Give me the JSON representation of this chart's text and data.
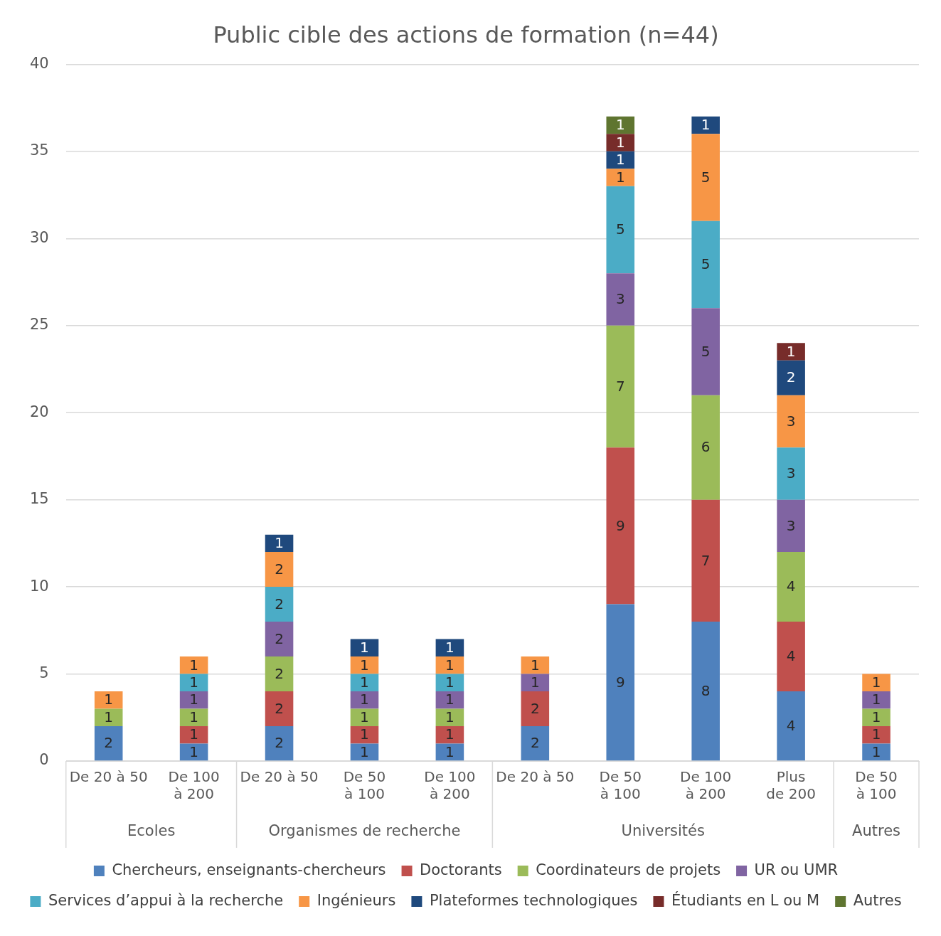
{
  "chart_data": {
    "type": "bar",
    "title": "Public cible des actions de formation (n=44)",
    "stacked": true,
    "data_labels": true,
    "grid": "y",
    "legend": "bottom",
    "categories": [
      "De 20 à 50",
      "De 100 à 200",
      "De 20 à 50",
      "De 50 à 100",
      "De 100 à 200",
      "De 20 à 50",
      "De 50 à 100",
      "De 100 à 200",
      "Plus de 200",
      "De 50 à 100"
    ],
    "annotations": [
      "Ecoles",
      "Organismes de recherche",
      "Universités",
      "Autres"
    ],
    "ylim": [
      0,
      40
    ],
    "yticks": [
      0,
      5,
      10,
      15,
      20,
      25,
      30,
      35,
      40
    ],
    "series": [
      {
        "name": "Chercheurs, enseignants-chercheurs",
        "color": "#4f81bd",
        "values": [
          2,
          1,
          2,
          1,
          1,
          2,
          9,
          8,
          4,
          1
        ]
      },
      {
        "name": "Doctorants",
        "color": "#c0504d",
        "values": [
          null,
          1,
          2,
          1,
          1,
          2,
          9,
          7,
          4,
          1
        ]
      },
      {
        "name": "Coordinateurs de projets",
        "color": "#9bbb59",
        "values": [
          1,
          1,
          2,
          1,
          1,
          null,
          7,
          6,
          4,
          1
        ]
      },
      {
        "name": "UR ou UMR",
        "color": "#8064a2",
        "values": [
          null,
          1,
          2,
          1,
          1,
          1,
          3,
          5,
          3,
          1
        ]
      },
      {
        "name": "Services d’appui à la recherche",
        "color": "#4bacc6",
        "values": [
          null,
          1,
          2,
          1,
          1,
          null,
          5,
          5,
          3,
          null
        ]
      },
      {
        "name": "Ingénieurs",
        "color": "#f79646",
        "values": [
          1,
          1,
          2,
          1,
          1,
          1,
          1,
          5,
          3,
          1
        ]
      },
      {
        "name": "Plateformes technologiques",
        "color": "#1f497d",
        "values": [
          null,
          null,
          1,
          1,
          1,
          null,
          1,
          1,
          2,
          null
        ]
      },
      {
        "name": "Étudiants en L ou M",
        "color": "#772c2a",
        "values": [
          null,
          null,
          null,
          null,
          null,
          null,
          1,
          null,
          1,
          null
        ]
      },
      {
        "name": "Autres",
        "color": "#5f7530",
        "values": [
          null,
          null,
          null,
          null,
          null,
          null,
          1,
          null,
          null,
          null
        ]
      }
    ]
  }
}
